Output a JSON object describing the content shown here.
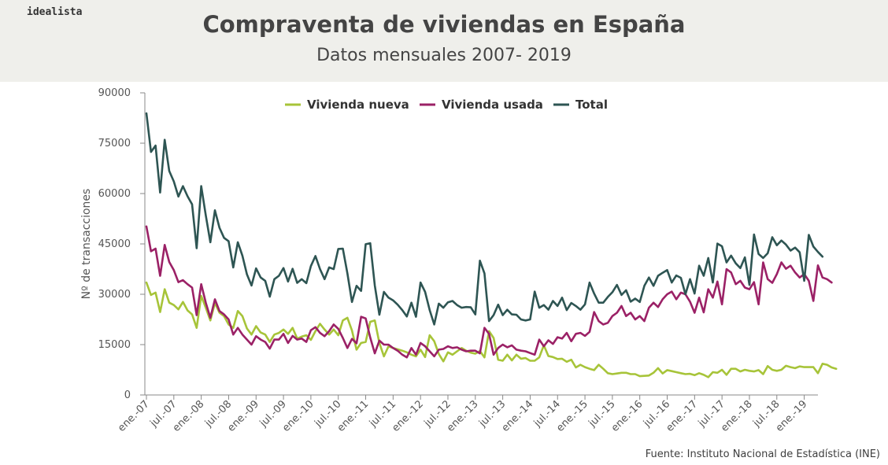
{
  "brand": "idealista",
  "header": {
    "title": "Compraventa de viviendas en España",
    "subtitle": "Datos mensuales 2007- 2019"
  },
  "source": "Fuente: Instituto Nacional de Estadística (INE)",
  "colors": {
    "nueva": "#a7c439",
    "usada": "#9b2166",
    "total": "#2e5553",
    "axis": "#888888"
  },
  "chart_data": {
    "type": "line",
    "title": "Compraventa de viviendas en España",
    "subtitle": "Datos mensuales 2007- 2019",
    "xlabel": "",
    "ylabel": "Nº de transacciones",
    "ylim": [
      0,
      90000
    ],
    "yticks": [
      0,
      15000,
      30000,
      45000,
      60000,
      75000,
      90000
    ],
    "ytick_labels": [
      "0",
      "15000",
      "30000",
      "45000",
      "60000",
      "75000",
      "90000"
    ],
    "xtick_labels": [
      "ene.-07",
      "jul.-07",
      "ene.-08",
      "jul.-08",
      "ene.-09",
      "jul.-09",
      "ene.-10",
      "jul.-10",
      "ene.-11",
      "jul.-11",
      "ene.-12",
      "jul.-12",
      "ene.-13",
      "jul.-13",
      "ene.-14",
      "jul.-14",
      "ene.-15",
      "jul.-15",
      "ene.-16",
      "jul.-16",
      "ene.-17",
      "jul.-17",
      "ene.-18",
      "jul.-18",
      "ene.-19"
    ],
    "xtick_step_months": 6,
    "start": "ene.-07",
    "n_months": 148,
    "legend_position": "top",
    "grid": false,
    "series": [
      {
        "name": "Vivienda nueva",
        "color_key": "nueva",
        "values": [
          33500,
          29800,
          30500,
          24700,
          31500,
          27500,
          26800,
          25500,
          27700,
          25200,
          24000,
          20000,
          29500,
          26000,
          22200,
          27400,
          24500,
          23500,
          21000,
          20000,
          25000,
          23500,
          19800,
          18000,
          20500,
          18600,
          18000,
          15800,
          18000,
          18500,
          19500,
          18200,
          20000,
          16800,
          17400,
          17800,
          16400,
          19000,
          21200,
          19500,
          18000,
          19500,
          17800,
          22200,
          23000,
          19200,
          13500,
          15500,
          15800,
          21800,
          22200,
          15500,
          11500,
          14500,
          14000,
          13600,
          13200,
          12700,
          12000,
          11500,
          13500,
          11300,
          17800,
          16000,
          12200,
          10000,
          12700,
          12000,
          13000,
          14000,
          13200,
          12600,
          12300,
          13100,
          11200,
          19000,
          17000,
          10500,
          10200,
          12000,
          10300,
          12000,
          10800,
          11000,
          10200,
          10200,
          11200,
          14800,
          11600,
          11300,
          10700,
          10800,
          9900,
          10500,
          8200,
          9000,
          8300,
          7800,
          7400,
          9000,
          7800,
          6500,
          6200,
          6400,
          6600,
          6600,
          6200,
          6200,
          5600,
          5700,
          5800,
          6600,
          8000,
          6400,
          7400,
          7100,
          6800,
          6500,
          6200,
          6300,
          5900,
          6500,
          6000,
          5300,
          6800,
          6600,
          7500,
          6000,
          7800,
          7800,
          7000,
          7500,
          7200,
          7000,
          7400,
          6200,
          8600,
          7500,
          7200,
          7500,
          8700,
          8300,
          8000,
          8500,
          8300,
          8300,
          8300,
          6500,
          9300,
          9000,
          8200,
          7800
        ]
      },
      {
        "name": "Vivienda usada",
        "color_key": "usada",
        "values": [
          50200,
          42800,
          43600,
          35500,
          44700,
          39600,
          37200,
          33600,
          34200,
          33000,
          32000,
          23800,
          33000,
          27500,
          23000,
          28500,
          25000,
          24000,
          22500,
          18000,
          20000,
          18000,
          16500,
          15000,
          17500,
          16500,
          15800,
          13800,
          16500,
          16500,
          18200,
          15500,
          17600,
          16500,
          16800,
          15800,
          19300,
          20200,
          18500,
          17500,
          19000,
          21000,
          19700,
          17000,
          14000,
          16700,
          15400,
          23300,
          22800,
          17100,
          12400,
          16200,
          15000,
          15000,
          14000,
          13200,
          12000,
          11200,
          14000,
          12000,
          15500,
          14500,
          13000,
          11500,
          13500,
          13700,
          14500,
          14000,
          14200,
          13500,
          13000,
          13200,
          13200,
          12400,
          20000,
          18200,
          12000,
          14000,
          15000,
          14200,
          14800,
          13500,
          13200,
          13000,
          12500,
          12000,
          16500,
          14500,
          16300,
          15200,
          17200,
          16800,
          18500,
          16000,
          18200,
          18500,
          17600,
          18800,
          24700,
          22000,
          21000,
          21500,
          23500,
          24500,
          26500,
          23500,
          24500,
          22500,
          23500,
          22000,
          26000,
          27500,
          26200,
          28500,
          30000,
          30800,
          28500,
          30500,
          30000,
          27800,
          24500,
          29000,
          24600,
          31500,
          29000,
          33800,
          27000,
          37500,
          36500,
          33000,
          34000,
          32000,
          31500,
          33600,
          27000,
          39500,
          34500,
          33400,
          36000,
          39500,
          37600,
          38500,
          36500,
          35000,
          36000,
          34000,
          28000,
          38600,
          35000,
          34500,
          33500
        ]
      },
      {
        "name": "Total",
        "color_key": "total",
        "values": [
          83900,
          72400,
          74300,
          60300,
          76000,
          66700,
          63600,
          59100,
          62200,
          59200,
          56800,
          43700,
          62200,
          53500,
          45500,
          55000,
          49800,
          46800,
          45800,
          38000,
          45500,
          41500,
          35900,
          32600,
          37700,
          35000,
          34000,
          29300,
          34500,
          35500,
          37800,
          33800,
          37600,
          33400,
          34500,
          33300,
          38400,
          41400,
          37500,
          34500,
          38000,
          37500,
          43500,
          43600,
          36200,
          27700,
          32500,
          31000,
          44900,
          45200,
          32600,
          23900,
          30700,
          29000,
          28200,
          26900,
          25300,
          23400,
          27500,
          23300,
          33500,
          30700,
          25300,
          21000,
          27200,
          26000,
          27600,
          28000,
          26800,
          26000,
          26200,
          26100,
          24000,
          40000,
          36200,
          22000,
          23800,
          26900,
          23800,
          25400,
          24000,
          23900,
          22500,
          22200,
          22500,
          30800,
          26000,
          26800,
          25400,
          28000,
          26500,
          29000,
          25300,
          27400,
          26500,
          25400,
          27000,
          33500,
          30200,
          27500,
          27500,
          29200,
          30600,
          32800,
          29800,
          31200,
          27800,
          28700,
          27700,
          32500,
          35000,
          32500,
          35500,
          36400,
          37200,
          33500,
          35600,
          34900,
          30000,
          34500,
          30200,
          38500,
          35500,
          40800,
          33500,
          45100,
          44300,
          39500,
          41500,
          39200,
          37800,
          41000,
          32800,
          47800,
          42000,
          40800,
          42200,
          47000,
          44600,
          46000,
          44800,
          43000,
          43900,
          42500,
          34000,
          47700,
          44200,
          42600,
          41200
        ]
      }
    ]
  }
}
